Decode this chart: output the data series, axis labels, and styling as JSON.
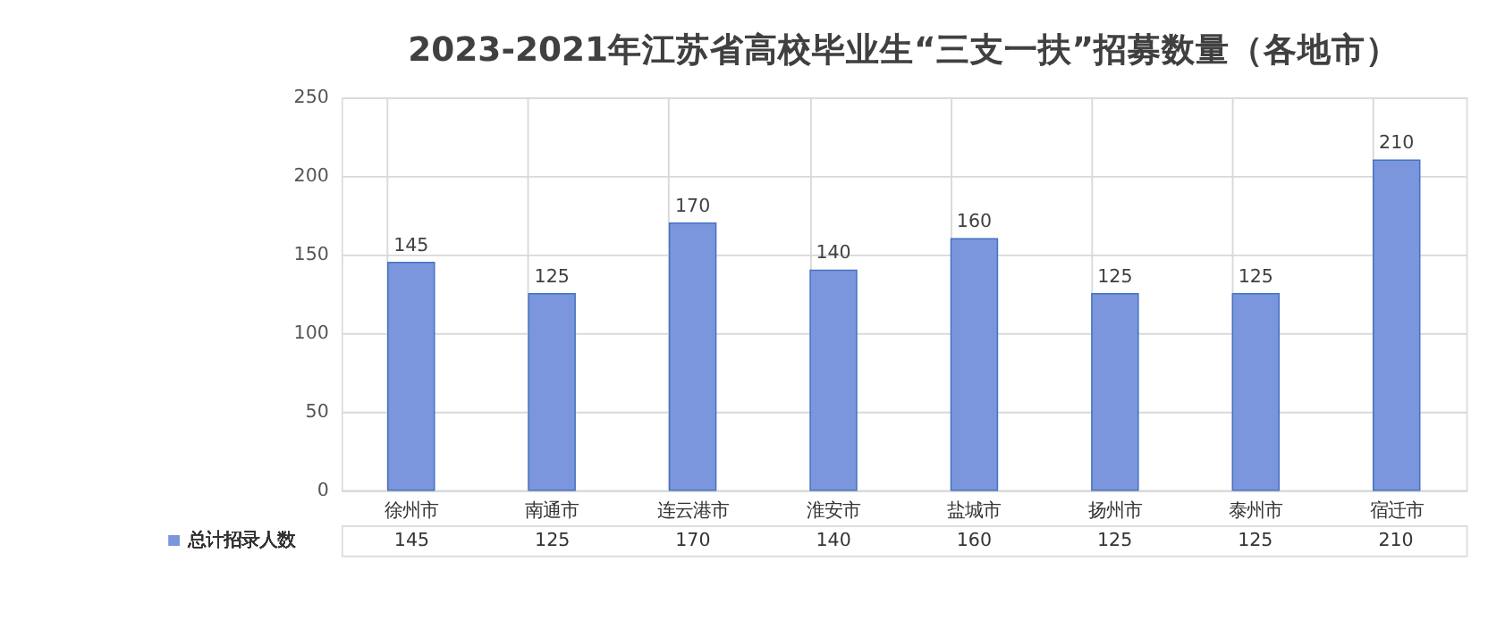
{
  "chart_data": {
    "type": "bar",
    "title": "2023-2021年江苏省高校毕业生“三支一扶”招募数量（各地市）",
    "categories": [
      "徐州市",
      "南通市",
      "连云港市",
      "淮安市",
      "盐城市",
      "扬州市",
      "泰州市",
      "宿迁市"
    ],
    "series": [
      {
        "name": "总计招录人数",
        "color": "#7b96dc",
        "values": [
          145,
          125,
          170,
          140,
          160,
          125,
          125,
          210
        ]
      }
    ],
    "annotations": [
      "145",
      "125",
      "170",
      "140",
      "160",
      "125",
      "125",
      "210"
    ],
    "ylim": [
      0,
      250
    ],
    "yticks": [
      0,
      50,
      100,
      150,
      200,
      250
    ],
    "grid": "y",
    "data_labels": true,
    "legend": "bottom left"
  }
}
